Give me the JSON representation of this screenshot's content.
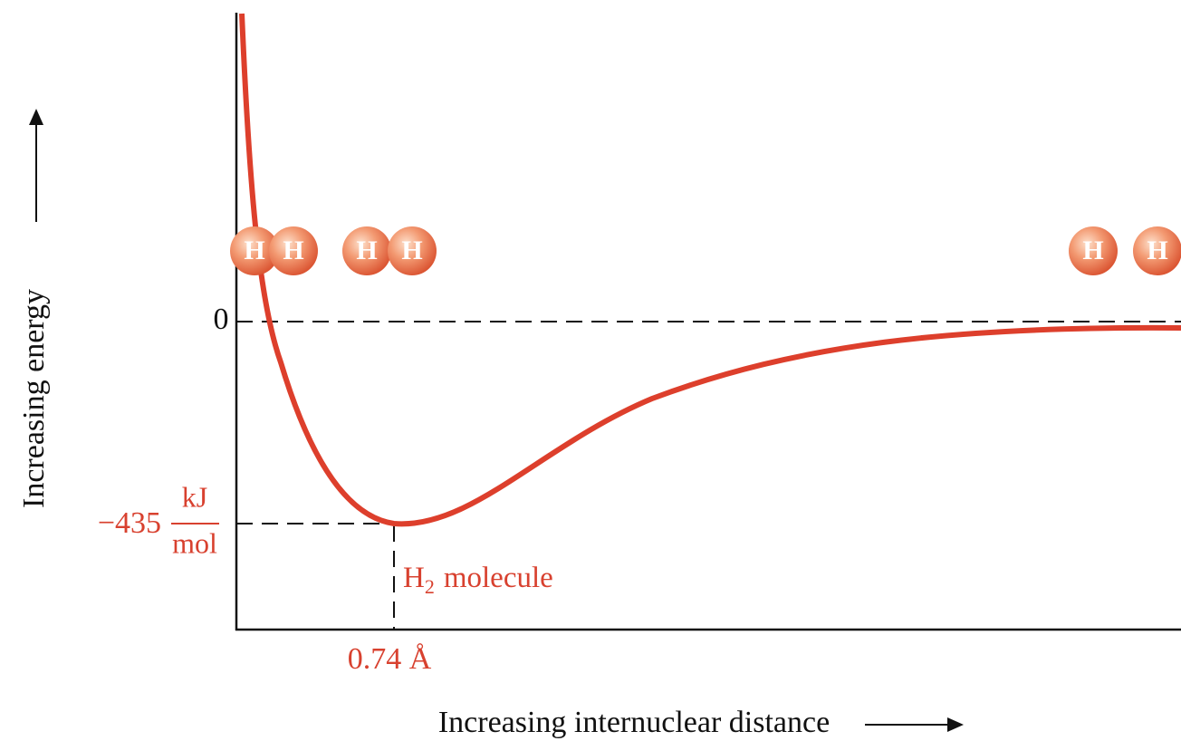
{
  "axes": {
    "y_label": "Increasing energy",
    "x_label": "Increasing internuclear distance",
    "zero_label": "0"
  },
  "minimum": {
    "energy": "−435",
    "unit_numerator": "kJ",
    "unit_denominator": "mol",
    "distance": "0.74 Å",
    "molecule": {
      "base": "H",
      "subscript": "2",
      "text": "molecule"
    }
  },
  "atoms": [
    "H",
    "H",
    "H",
    "H",
    "H",
    "H"
  ]
}
